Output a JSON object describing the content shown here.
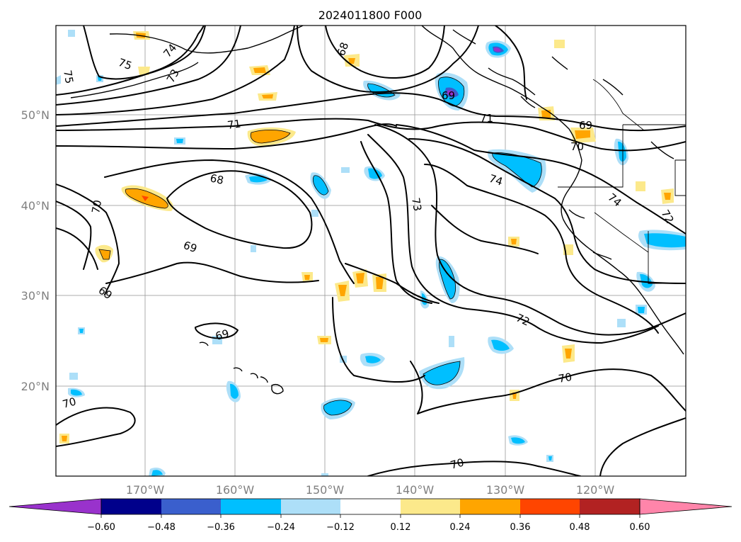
{
  "title": "2024011800 F000",
  "map": {
    "lat_labels": [
      "50°N",
      "40°N",
      "30°N",
      "20°N"
    ],
    "lon_labels": [
      "170°W",
      "160°W",
      "150°W",
      "140°W",
      "130°W",
      "120°W"
    ],
    "contour_labels": [
      {
        "text": "75"
      },
      {
        "text": "75"
      },
      {
        "text": "74"
      },
      {
        "text": "73"
      },
      {
        "text": "68"
      },
      {
        "text": "69"
      },
      {
        "text": "71"
      },
      {
        "text": "71"
      },
      {
        "text": "70"
      },
      {
        "text": "68"
      },
      {
        "text": "69"
      },
      {
        "text": "69"
      },
      {
        "text": "69"
      },
      {
        "text": "74"
      },
      {
        "text": "73"
      },
      {
        "text": "72"
      },
      {
        "text": "70"
      },
      {
        "text": "70"
      },
      {
        "text": "70"
      },
      {
        "text": "69"
      },
      {
        "text": "70"
      },
      {
        "text": "74"
      },
      {
        "text": "72"
      }
    ]
  },
  "colorbar": {
    "tick_labels": [
      "−0.60",
      "−0.48",
      "−0.36",
      "−0.24",
      "−0.12",
      "0.12",
      "0.24",
      "0.36",
      "0.48",
      "0.60"
    ],
    "colors": [
      "#9932CC",
      "#00008B",
      "#3A5FCD",
      "#00BFFF",
      "#ADDFF8",
      "#FFFFFF",
      "#FCE98B",
      "#FFA500",
      "#FF4500",
      "#B22222",
      "#FF85AA"
    ]
  }
}
